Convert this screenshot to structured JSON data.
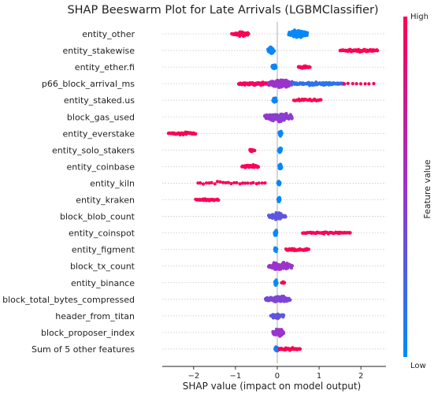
{
  "chart_data": {
    "type": "scatter",
    "subtype": "beeswarm",
    "title": "SHAP Beeswarm Plot for Late Arrivals (LGBMClassifier)",
    "xlabel": "SHAP value (impact on model output)",
    "xlim": [
      -2.75,
      2.6
    ],
    "xticks": [
      -2,
      -1,
      0,
      1,
      2
    ],
    "xtick_labels": [
      "−2",
      "−1",
      "0",
      "1",
      "2"
    ],
    "grid": true,
    "colorbar": {
      "label": "Feature value",
      "high": "High",
      "low": "Low",
      "high_color": "#ff0051",
      "low_color": "#008bfb"
    },
    "features": [
      {
        "name": "entity_other",
        "groups": [
          {
            "from": -1.08,
            "to": -0.68,
            "n": 45,
            "value": 1.0,
            "width": 0.55
          },
          {
            "from": 0.28,
            "to": 0.72,
            "n": 110,
            "value": 0.0,
            "width": 1.0
          }
        ]
      },
      {
        "name": "entity_stakewise",
        "groups": [
          {
            "from": -0.22,
            "to": -0.08,
            "n": 45,
            "value": 0.0,
            "width": 0.7
          },
          {
            "from": 1.5,
            "to": 2.4,
            "n": 70,
            "value": 1.0,
            "width": 0.35
          }
        ]
      },
      {
        "name": "entity_ether.fi",
        "groups": [
          {
            "from": -0.12,
            "to": -0.04,
            "n": 30,
            "value": 0.0,
            "width": 0.6
          },
          {
            "from": 0.5,
            "to": 0.78,
            "n": 25,
            "value": 1.0,
            "width": 0.35
          }
        ]
      },
      {
        "name": "p66_block_arrival_ms",
        "groups": [
          {
            "from": -0.92,
            "to": -0.2,
            "n": 90,
            "value": 0.95,
            "width": 0.45
          },
          {
            "from": -0.2,
            "to": 0.35,
            "n": 230,
            "value": 0.5,
            "width": 1.0
          },
          {
            "from": 0.35,
            "to": 1.6,
            "n": 110,
            "value": 0.15,
            "width": 0.45
          },
          {
            "from": 1.6,
            "to": 2.3,
            "n": 8,
            "value": 1.0,
            "width": 0.1
          }
        ]
      },
      {
        "name": "entity_staked.us",
        "groups": [
          {
            "from": -0.1,
            "to": -0.03,
            "n": 30,
            "value": 0.0,
            "width": 0.6
          },
          {
            "from": 0.4,
            "to": 1.05,
            "n": 25,
            "value": 1.0,
            "width": 0.35
          }
        ]
      },
      {
        "name": "block_gas_used",
        "groups": [
          {
            "from": -0.3,
            "to": 0.35,
            "n": 150,
            "value": 0.45,
            "width": 1.0
          }
        ]
      },
      {
        "name": "entity_everstake",
        "groups": [
          {
            "from": -2.6,
            "to": -1.95,
            "n": 40,
            "value": 1.0,
            "width": 0.35
          },
          {
            "from": 0.05,
            "to": 0.1,
            "n": 35,
            "value": 0.0,
            "width": 0.7
          }
        ]
      },
      {
        "name": "entity_solo_stakers",
        "groups": [
          {
            "from": -0.65,
            "to": -0.55,
            "n": 15,
            "value": 1.0,
            "width": 0.35
          },
          {
            "from": 0.04,
            "to": 0.09,
            "n": 35,
            "value": 0.0,
            "width": 0.7
          }
        ]
      },
      {
        "name": "entity_coinbase",
        "groups": [
          {
            "from": -0.85,
            "to": -0.45,
            "n": 25,
            "value": 1.0,
            "width": 0.45
          },
          {
            "from": 0.05,
            "to": 0.1,
            "n": 35,
            "value": 0.0,
            "width": 0.7
          }
        ]
      },
      {
        "name": "entity_kiln",
        "groups": [
          {
            "from": -1.9,
            "to": -0.3,
            "n": 25,
            "value": 1.0,
            "width": 0.45
          },
          {
            "from": 0.02,
            "to": 0.06,
            "n": 30,
            "value": 0.0,
            "width": 0.7
          }
        ]
      },
      {
        "name": "entity_kraken",
        "groups": [
          {
            "from": -1.95,
            "to": -1.4,
            "n": 35,
            "value": 1.0,
            "width": 0.3
          },
          {
            "from": 0.02,
            "to": 0.06,
            "n": 30,
            "value": 0.0,
            "width": 0.7
          }
        ]
      },
      {
        "name": "block_blob_count",
        "groups": [
          {
            "from": -0.2,
            "to": 0.2,
            "n": 90,
            "value": 0.3,
            "width": 0.8
          }
        ]
      },
      {
        "name": "entity_coinspot",
        "groups": [
          {
            "from": -0.06,
            "to": -0.02,
            "n": 30,
            "value": 0.0,
            "width": 0.7
          },
          {
            "from": 0.6,
            "to": 1.75,
            "n": 55,
            "value": 1.0,
            "width": 0.35
          }
        ]
      },
      {
        "name": "entity_figment",
        "groups": [
          {
            "from": -0.06,
            "to": -0.02,
            "n": 30,
            "value": 0.0,
            "width": 0.7
          },
          {
            "from": 0.2,
            "to": 0.75,
            "n": 35,
            "value": 1.0,
            "width": 0.35
          }
        ]
      },
      {
        "name": "block_tx_count",
        "groups": [
          {
            "from": -0.2,
            "to": 0.35,
            "n": 100,
            "value": 0.5,
            "width": 1.0
          }
        ]
      },
      {
        "name": "entity_binance",
        "groups": [
          {
            "from": -0.05,
            "to": -0.01,
            "n": 30,
            "value": 0.0,
            "width": 0.7
          },
          {
            "from": 0.1,
            "to": 0.18,
            "n": 5,
            "value": 1.0,
            "width": 0.2
          }
        ]
      },
      {
        "name": "block_total_bytes_compressed",
        "groups": [
          {
            "from": -0.28,
            "to": 0.3,
            "n": 90,
            "value": 0.4,
            "width": 0.8
          }
        ]
      },
      {
        "name": "header_from_titan",
        "groups": [
          {
            "from": -0.15,
            "to": 0.15,
            "n": 60,
            "value": 0.3,
            "width": 0.6
          }
        ]
      },
      {
        "name": "block_proposer_index",
        "groups": [
          {
            "from": -0.1,
            "to": 0.15,
            "n": 70,
            "value": 0.5,
            "width": 0.9
          }
        ]
      },
      {
        "name": "Sum of 5 other features",
        "groups": [
          {
            "from": -0.05,
            "to": 0.05,
            "n": 35,
            "value": 0.1,
            "width": 0.7
          },
          {
            "from": 0.05,
            "to": 0.55,
            "n": 40,
            "value": 1.0,
            "width": 0.3
          }
        ]
      }
    ]
  }
}
